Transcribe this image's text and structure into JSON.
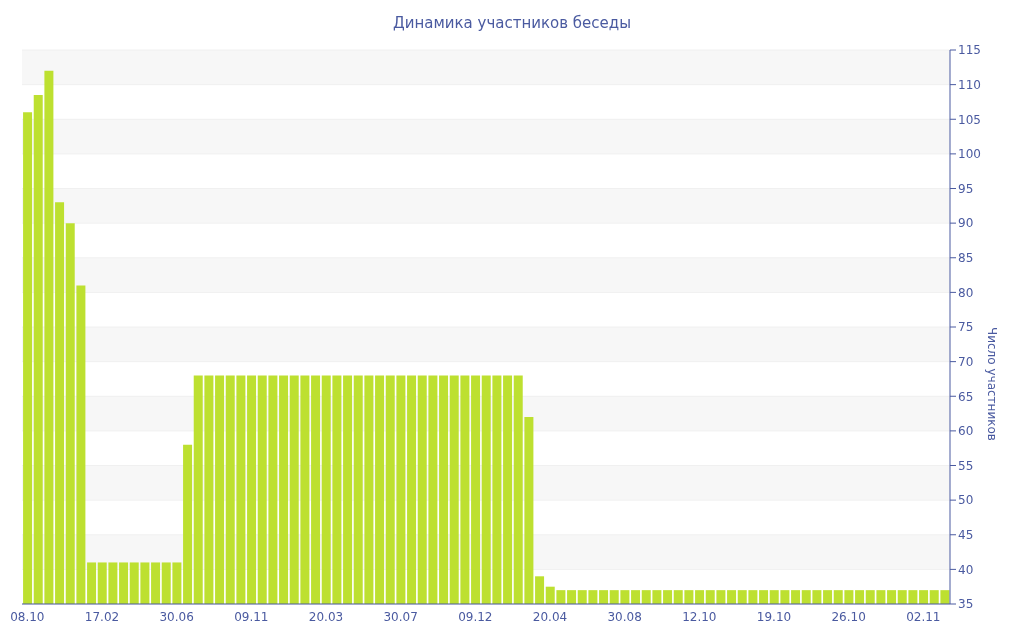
{
  "chart_data": {
    "type": "bar",
    "title": "Динамика участников беседы",
    "ylabel": "Число участников",
    "categories": [
      "08.10",
      null,
      null,
      null,
      null,
      null,
      null,
      "17.02",
      null,
      null,
      null,
      null,
      null,
      null,
      "30.06",
      null,
      null,
      null,
      null,
      null,
      null,
      "09.11",
      null,
      null,
      null,
      null,
      null,
      null,
      "20.03",
      null,
      null,
      null,
      null,
      null,
      null,
      "30.07",
      null,
      null,
      null,
      null,
      null,
      null,
      "09.12",
      null,
      null,
      null,
      null,
      null,
      null,
      "20.04",
      null,
      null,
      null,
      null,
      null,
      null,
      "30.08",
      null,
      null,
      null,
      null,
      null,
      null,
      "12.10",
      null,
      null,
      null,
      null,
      null,
      null,
      "19.10",
      null,
      null,
      null,
      null,
      null,
      null,
      "26.10",
      null,
      null,
      null,
      null,
      null,
      null,
      "02.11",
      null,
      null
    ],
    "values": [
      106,
      108.5,
      112,
      93,
      90,
      81,
      41,
      41,
      41,
      41,
      41,
      41,
      41,
      41,
      41,
      58,
      68,
      68,
      68,
      68,
      68,
      68,
      68,
      68,
      68,
      68,
      68,
      68,
      68,
      68,
      68,
      68,
      68,
      68,
      68,
      68,
      68,
      68,
      68,
      68,
      68,
      68,
      68,
      68,
      68,
      68,
      68,
      62,
      39,
      37.5,
      37,
      37,
      37,
      37,
      37,
      37,
      37,
      37,
      37,
      37,
      37,
      37,
      37,
      37,
      37,
      37,
      37,
      37,
      37,
      37,
      37,
      37,
      37,
      37,
      37,
      37,
      37,
      37,
      37,
      37,
      37,
      37,
      37,
      37,
      37,
      37,
      37
    ],
    "color": "#bde030",
    "ylim": [
      35,
      115
    ],
    "yticks": [
      35,
      40,
      45,
      50,
      55,
      60,
      65,
      70,
      75,
      80,
      85,
      90,
      95,
      100,
      105,
      110,
      115
    ],
    "grid": "y",
    "legend": false
  }
}
